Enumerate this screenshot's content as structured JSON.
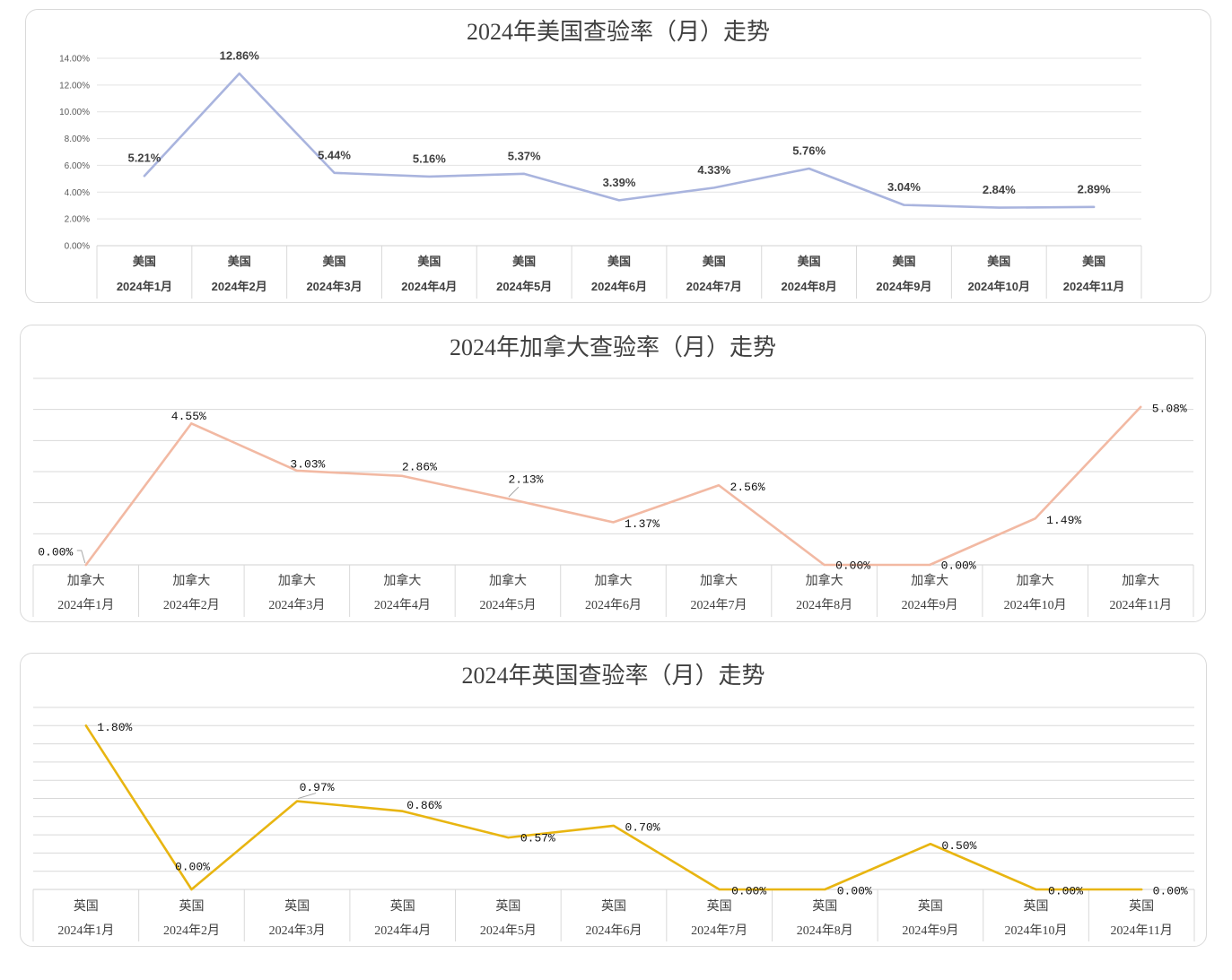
{
  "chart_data": [
    {
      "type": "line",
      "title": "2024年美国查验率（月）走势",
      "categories": [
        {
          "country": "美国",
          "month": "2024年1月"
        },
        {
          "country": "美国",
          "month": "2024年2月"
        },
        {
          "country": "美国",
          "month": "2024年3月"
        },
        {
          "country": "美国",
          "month": "2024年4月"
        },
        {
          "country": "美国",
          "month": "2024年5月"
        },
        {
          "country": "美国",
          "month": "2024年6月"
        },
        {
          "country": "美国",
          "month": "2024年7月"
        },
        {
          "country": "美国",
          "month": "2024年8月"
        },
        {
          "country": "美国",
          "month": "2024年9月"
        },
        {
          "country": "美国",
          "month": "2024年10月"
        },
        {
          "country": "美国",
          "month": "2024年11月"
        }
      ],
      "series": [
        {
          "values": [
            5.21,
            12.86,
            5.44,
            5.16,
            5.37,
            3.39,
            4.33,
            5.76,
            3.04,
            2.84,
            2.89
          ],
          "data_labels": [
            "5.21%",
            "12.86%",
            "5.44%",
            "5.16%",
            "5.37%",
            "3.39%",
            "4.33%",
            "5.76%",
            "3.04%",
            "2.84%",
            "2.89%"
          ],
          "color": "#A9B4DE"
        }
      ],
      "ytick_labels": [
        "0.00%",
        "2.00%",
        "4.00%",
        "6.00%",
        "8.00%",
        "10.00%",
        "12.00%",
        "14.00%"
      ],
      "ylim": [
        0,
        14
      ],
      "ystep": 2,
      "grid": true,
      "legend": "none"
    },
    {
      "type": "line",
      "title": "2024年加拿大查验率（月）走势",
      "categories": [
        {
          "country": "加拿大",
          "month": "2024年1月"
        },
        {
          "country": "加拿大",
          "month": "2024年2月"
        },
        {
          "country": "加拿大",
          "month": "2024年3月"
        },
        {
          "country": "加拿大",
          "month": "2024年4月"
        },
        {
          "country": "加拿大",
          "month": "2024年5月"
        },
        {
          "country": "加拿大",
          "month": "2024年6月"
        },
        {
          "country": "加拿大",
          "month": "2024年7月"
        },
        {
          "country": "加拿大",
          "month": "2024年8月"
        },
        {
          "country": "加拿大",
          "month": "2024年9月"
        },
        {
          "country": "加拿大",
          "month": "2024年10月"
        },
        {
          "country": "加拿大",
          "month": "2024年11月"
        }
      ],
      "series": [
        {
          "values": [
            0.0,
            4.55,
            3.03,
            2.86,
            2.13,
            1.37,
            2.56,
            0.0,
            0.0,
            1.49,
            5.08
          ],
          "data_labels": [
            "0.00%",
            "4.55%",
            "3.03%",
            "2.86%",
            "2.13%",
            "1.37%",
            "2.56%",
            "0.00%",
            "0.00%",
            "1.49%",
            "5.08%"
          ],
          "color": "#F2B9A3"
        }
      ],
      "ylim": [
        0,
        6
      ],
      "ystep": 1,
      "grid": true,
      "legend": "none"
    },
    {
      "type": "line",
      "title": "2024年英国查验率（月）走势",
      "categories": [
        {
          "country": "英国",
          "month": "2024年1月"
        },
        {
          "country": "英国",
          "month": "2024年2月"
        },
        {
          "country": "英国",
          "month": "2024年3月"
        },
        {
          "country": "英国",
          "month": "2024年4月"
        },
        {
          "country": "英国",
          "month": "2024年5月"
        },
        {
          "country": "英国",
          "month": "2024年6月"
        },
        {
          "country": "英国",
          "month": "2024年7月"
        },
        {
          "country": "英国",
          "month": "2024年8月"
        },
        {
          "country": "英国",
          "month": "2024年9月"
        },
        {
          "country": "英国",
          "month": "2024年10月"
        },
        {
          "country": "英国",
          "month": "2024年11月"
        }
      ],
      "series": [
        {
          "values": [
            1.8,
            0.0,
            0.97,
            0.86,
            0.57,
            0.7,
            0.0,
            0.0,
            0.5,
            0.0,
            0.0
          ],
          "data_labels": [
            "1.80%",
            "0.00%",
            "0.97%",
            "0.86%",
            "0.57%",
            "0.70%",
            "0.00%",
            "0.00%",
            "0.50%",
            "0.00%",
            "0.00%"
          ],
          "color": "#E8B511"
        }
      ],
      "ylim": [
        0,
        2
      ],
      "ystep": 0.2,
      "grid": true,
      "legend": "none"
    }
  ]
}
